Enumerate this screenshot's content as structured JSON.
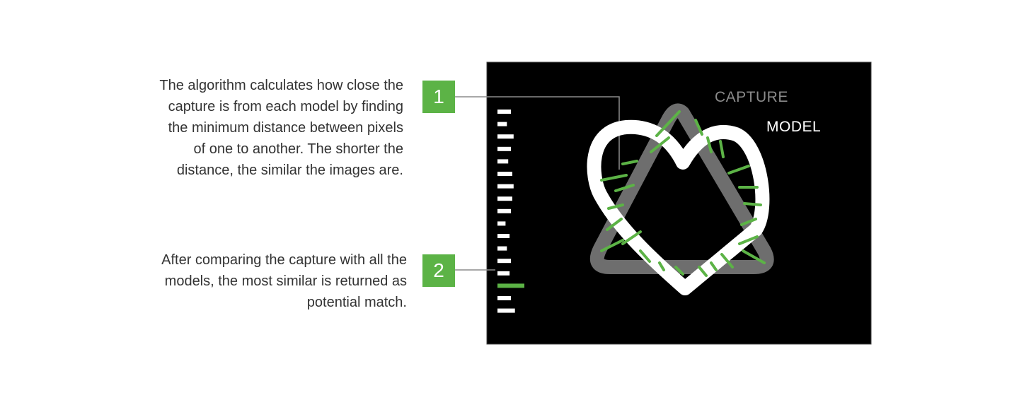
{
  "steps": [
    {
      "number": "1",
      "lines": [
        "The algorithm calculates how close the",
        "capture is from each model by finding",
        "the minimum distance between pixels",
        "of one to another. The shorter the",
        "distance, the similar the images are."
      ]
    },
    {
      "number": "2",
      "lines": [
        "After comparing the capture with all the",
        "models, the most similar is returned as",
        "potential match."
      ]
    }
  ],
  "legend": {
    "capture": "CAPTURE",
    "model": "MODEL"
  },
  "distance_scores": [
    0.5,
    0.35,
    0.6,
    0.5,
    0.4,
    0.55,
    0.6,
    0.55,
    0.5,
    0.3,
    0.45,
    0.35,
    0.5,
    0.45,
    1.0,
    0.5,
    0.65
  ],
  "best_match_index": 14,
  "colors": {
    "accent": "#5cb346",
    "panel": "#000000",
    "capture": "#6e6e6e",
    "model": "#ffffff",
    "text": "#333333",
    "connector": "#8c8c8c"
  }
}
